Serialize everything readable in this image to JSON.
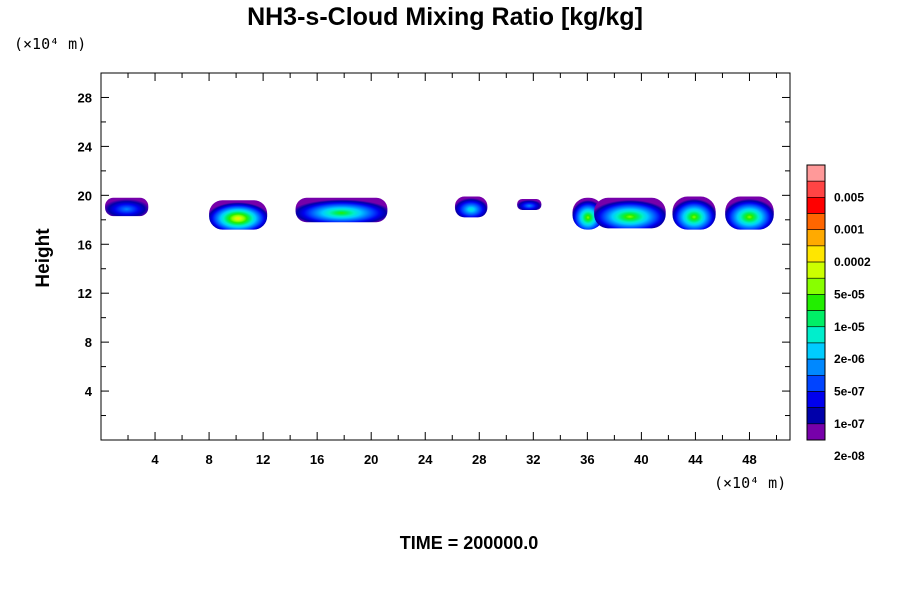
{
  "chart_data": {
    "type": "heatmap",
    "title": "NH3-s-Cloud Mixing Ratio [kg/kg]",
    "xlabel": "",
    "ylabel": "Height",
    "x_unit": "(×10⁴ m)",
    "y_unit": "(×10⁴ m)",
    "xlim": [
      0,
      51
    ],
    "ylim": [
      0,
      30
    ],
    "x_ticks": [
      "4",
      "8",
      "12",
      "16",
      "20",
      "24",
      "28",
      "32",
      "36",
      "40",
      "44",
      "48"
    ],
    "x_tick_values": [
      4,
      8,
      12,
      16,
      20,
      24,
      28,
      32,
      36,
      40,
      44,
      48
    ],
    "y_ticks": [
      "4",
      "8",
      "12",
      "16",
      "20",
      "24",
      "28"
    ],
    "y_tick_values": [
      4,
      8,
      12,
      16,
      20,
      24,
      28
    ],
    "colorbar": {
      "labels": [
        "0.005",
        "0.001",
        "0.0002",
        "5e-05",
        "1e-05",
        "2e-06",
        "5e-07",
        "1e-07",
        "2e-08"
      ],
      "colors": [
        "#ff9999",
        "#ff4444",
        "#ff0000",
        "#ff6600",
        "#ffaa00",
        "#ffe600",
        "#ccff00",
        "#88ff00",
        "#22ee00",
        "#00ee66",
        "#00eecc",
        "#00ccff",
        "#0088ff",
        "#0044ff",
        "#0000ee",
        "#0000aa",
        "#7700aa"
      ]
    },
    "clouds": [
      {
        "x": [
          0.3,
          3.5
        ],
        "y": [
          18.3,
          19.8
        ],
        "max_level": 12
      },
      {
        "x": [
          8.0,
          12.3
        ],
        "y": [
          17.2,
          19.6
        ],
        "max_level": 5
      },
      {
        "x": [
          14.4,
          21.2
        ],
        "y": [
          17.8,
          19.8
        ],
        "max_level": 8
      },
      {
        "x": [
          26.2,
          28.6
        ],
        "y": [
          18.2,
          19.9
        ],
        "max_level": 10
      },
      {
        "x": [
          30.8,
          32.6
        ],
        "y": [
          18.8,
          19.7
        ],
        "max_level": 12
      },
      {
        "x": [
          34.9,
          37.2
        ],
        "y": [
          17.2,
          19.8
        ],
        "max_level": 7
      },
      {
        "x": [
          36.5,
          41.8
        ],
        "y": [
          17.3,
          19.8
        ],
        "max_level": 7
      },
      {
        "x": [
          42.3,
          45.5
        ],
        "y": [
          17.2,
          19.9
        ],
        "max_level": 7
      },
      {
        "x": [
          46.2,
          49.8
        ],
        "y": [
          17.2,
          19.9
        ],
        "max_level": 7
      }
    ],
    "annotation": "TIME = 200000.0",
    "grid": false
  }
}
